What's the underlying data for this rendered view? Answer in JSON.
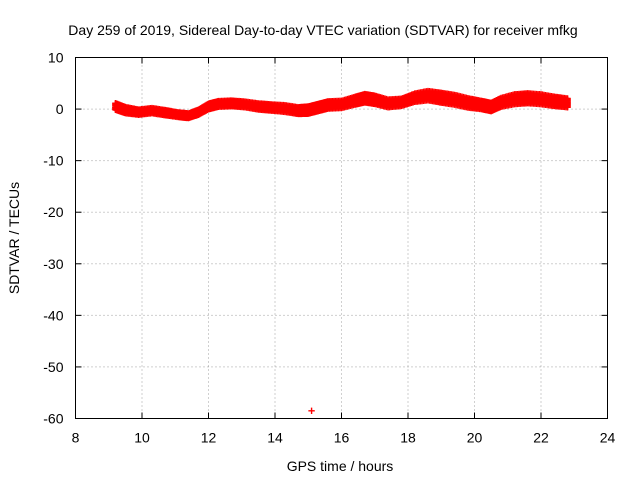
{
  "chart_data": {
    "type": "scatter",
    "title": "Day 259 of 2019, Sidereal Day-to-day VTEC variation (SDTVAR) for receiver mfkg",
    "xlabel": "GPS time / hours",
    "ylabel": "SDTVAR / TECUs",
    "xlim": [
      8,
      24
    ],
    "ylim": [
      -60,
      10
    ],
    "xticks": [
      8,
      10,
      12,
      14,
      16,
      18,
      20,
      22,
      24
    ],
    "yticks": [
      10,
      0,
      -10,
      -20,
      -30,
      -40,
      -50,
      -60
    ],
    "xtick_labels": [
      "8",
      "10",
      "12",
      "14",
      "16",
      "18",
      "20",
      "22",
      "24"
    ],
    "ytick_labels": [
      "10",
      "0",
      "-10",
      "-20",
      "-30",
      "-40",
      "-50",
      "-60"
    ],
    "grid": true,
    "marker": "plus",
    "color": "#ff0000",
    "series": [
      {
        "name": "SDTVAR",
        "trace": [
          [
            9.2,
            0.5
          ],
          [
            9.5,
            -0.2
          ],
          [
            9.9,
            -0.6
          ],
          [
            10.3,
            -0.3
          ],
          [
            10.7,
            -0.7
          ],
          [
            11.1,
            -1.1
          ],
          [
            11.4,
            -1.3
          ],
          [
            11.7,
            -0.6
          ],
          [
            12.0,
            0.5
          ],
          [
            12.3,
            1.0
          ],
          [
            12.7,
            1.1
          ],
          [
            13.1,
            0.9
          ],
          [
            13.5,
            0.5
          ],
          [
            13.9,
            0.3
          ],
          [
            14.3,
            0.1
          ],
          [
            14.7,
            -0.3
          ],
          [
            15.0,
            -0.2
          ],
          [
            15.3,
            0.3
          ],
          [
            15.6,
            0.8
          ],
          [
            16.0,
            0.9
          ],
          [
            16.4,
            1.6
          ],
          [
            16.7,
            2.1
          ],
          [
            17.0,
            1.8
          ],
          [
            17.4,
            1.1
          ],
          [
            17.8,
            1.3
          ],
          [
            18.2,
            2.2
          ],
          [
            18.6,
            2.6
          ],
          [
            19.0,
            2.2
          ],
          [
            19.4,
            1.8
          ],
          [
            19.8,
            1.2
          ],
          [
            20.2,
            0.8
          ],
          [
            20.5,
            0.4
          ],
          [
            20.8,
            1.3
          ],
          [
            21.2,
            1.9
          ],
          [
            21.6,
            2.1
          ],
          [
            22.0,
            1.9
          ],
          [
            22.4,
            1.5
          ],
          [
            22.8,
            1.2
          ]
        ],
        "spread": [
          1.3,
          1.2,
          1.0,
          1.0,
          1.0,
          0.9,
          0.9,
          1.0,
          1.1,
          1.1,
          1.1,
          1.1,
          1.2,
          1.2,
          1.3,
          1.3,
          1.4,
          1.4,
          1.4,
          1.4,
          1.5,
          1.6,
          1.6,
          1.5,
          1.4,
          1.6,
          1.8,
          1.9,
          1.9,
          1.8,
          1.6,
          1.6,
          1.7,
          1.9,
          1.9,
          1.9,
          1.8,
          1.7
        ],
        "outliers": [
          [
            15.1,
            -58.5
          ]
        ]
      }
    ]
  }
}
